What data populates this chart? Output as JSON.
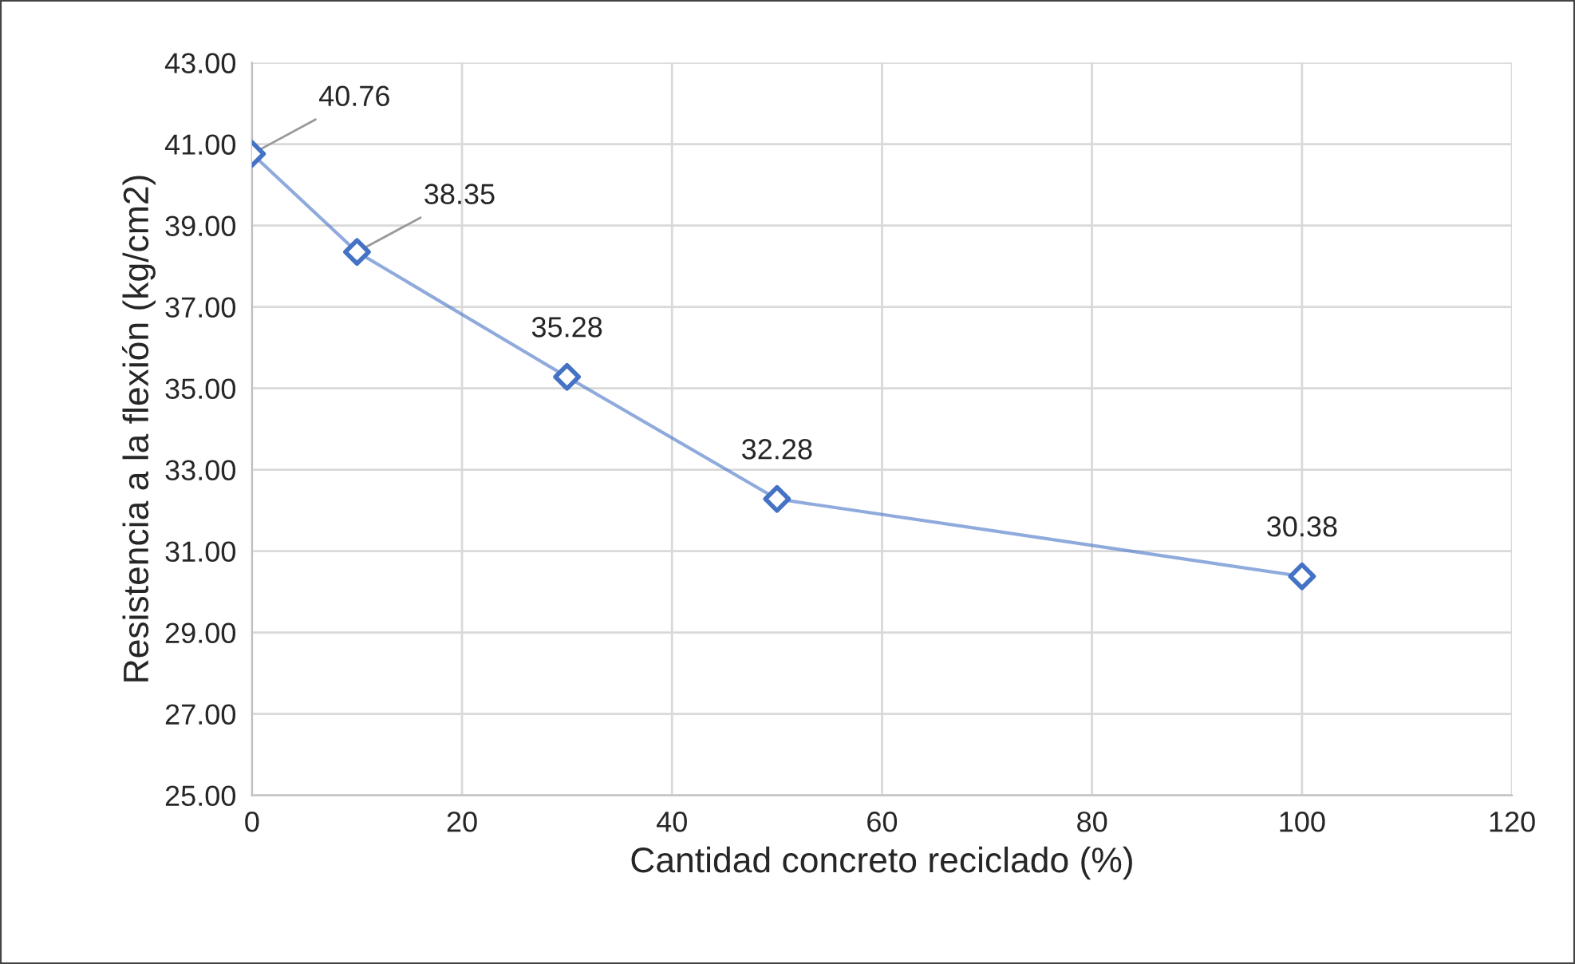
{
  "chart_data": {
    "type": "line",
    "xlabel": "Cantidad concreto reciclado (%)",
    "ylabel": "Resistencia a la flexión (kg/cm2)",
    "x": [
      0,
      10,
      30,
      50,
      100
    ],
    "series": [
      {
        "color": "#4472c4",
        "values": [
          40.76,
          38.35,
          35.28,
          32.28,
          30.38
        ]
      }
    ],
    "xlim": [
      0,
      120
    ],
    "xticks": [
      0,
      20,
      40,
      60,
      80,
      100,
      120
    ],
    "ylim": [
      25,
      43
    ],
    "yticks": [
      {
        "value": 25,
        "label": "25.00"
      },
      {
        "value": 27,
        "label": "27.00"
      },
      {
        "value": 29,
        "label": "29.00"
      },
      {
        "value": 31,
        "label": "31.00"
      },
      {
        "value": 33,
        "label": "33.00"
      },
      {
        "value": 35,
        "label": "35.00"
      },
      {
        "value": 37,
        "label": "37.00"
      },
      {
        "value": 39,
        "label": "39.00"
      },
      {
        "value": 41,
        "label": "41.00"
      },
      {
        "value": 43,
        "label": "43.00"
      }
    ],
    "grid": true,
    "marker": "diamond",
    "line_style": "solid",
    "data_labels": true
  }
}
